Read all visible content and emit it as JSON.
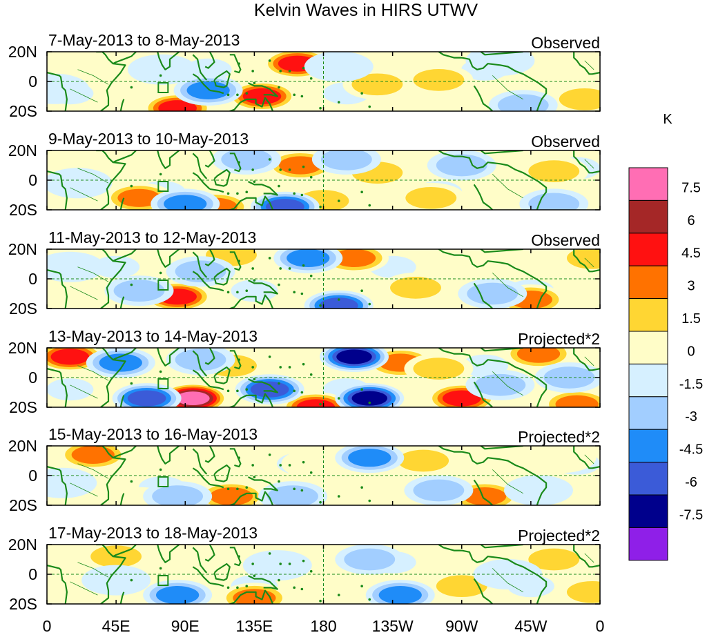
{
  "chart_data": {
    "type": "heatmap",
    "title": "Kelvin Waves in HIRS UTWV",
    "units": "K",
    "x_tick_labels": [
      "0",
      "45E",
      "90E",
      "135E",
      "180",
      "135W",
      "90W",
      "45W",
      "0"
    ],
    "x_ticks_deg": [
      0,
      45,
      90,
      135,
      180,
      225,
      270,
      315,
      360
    ],
    "y_tick_labels": [
      "20N",
      "0",
      "20S"
    ],
    "y_ticks_deg": [
      20,
      0,
      -20
    ],
    "xlim": [
      0,
      360
    ],
    "ylim": [
      -20,
      20
    ],
    "panels": [
      {
        "date_range": "7-May-2013 to 8-May-2013",
        "label": "Observed",
        "anomalies": [
          {
            "lon": 163,
            "lat": 12,
            "value": 5.5
          },
          {
            "lon": 140,
            "lat": -10,
            "value": 5.5
          },
          {
            "lon": 85,
            "lat": -18,
            "value": 6.5
          },
          {
            "lon": 255,
            "lat": 1,
            "value": 3.2
          },
          {
            "lon": 215,
            "lat": -2,
            "value": 2.5
          },
          {
            "lon": 28,
            "lat": 12,
            "value": 2.2
          },
          {
            "lon": 332,
            "lat": 12,
            "value": 2.0
          },
          {
            "lon": 350,
            "lat": -12,
            "value": 2.5
          },
          {
            "lon": 105,
            "lat": -6,
            "value": -3.8
          },
          {
            "lon": 75,
            "lat": 8,
            "value": -2.2
          },
          {
            "lon": 310,
            "lat": -16,
            "value": -3.2
          },
          {
            "lon": 190,
            "lat": 10,
            "value": -2.0
          },
          {
            "lon": 5,
            "lat": -5,
            "value": -1.8
          },
          {
            "lon": 295,
            "lat": 14,
            "value": -2.2
          }
        ]
      },
      {
        "date_range": "9-May-2013 to 10-May-2013",
        "label": "Observed",
        "anomalies": [
          {
            "lon": 165,
            "lat": 10,
            "value": 5.0
          },
          {
            "lon": 60,
            "lat": -12,
            "value": 5.0
          },
          {
            "lon": 110,
            "lat": -18,
            "value": 5.0
          },
          {
            "lon": 180,
            "lat": -14,
            "value": 3.5
          },
          {
            "lon": 215,
            "lat": 5,
            "value": 3.2
          },
          {
            "lon": 330,
            "lat": 6,
            "value": 2.8
          },
          {
            "lon": 250,
            "lat": -12,
            "value": 2.5
          },
          {
            "lon": 30,
            "lat": 14,
            "value": 2.0
          },
          {
            "lon": 155,
            "lat": -18,
            "value": -6.5
          },
          {
            "lon": 90,
            "lat": -16,
            "value": -3.8
          },
          {
            "lon": 130,
            "lat": 14,
            "value": -3.2
          },
          {
            "lon": 195,
            "lat": 14,
            "value": -3.0
          },
          {
            "lon": 270,
            "lat": 10,
            "value": -2.5
          },
          {
            "lon": 330,
            "lat": -16,
            "value": -2.8
          },
          {
            "lon": 20,
            "lat": -2,
            "value": -2.0
          }
        ]
      },
      {
        "date_range": "11-May-2013 to 12-May-2013",
        "label": "Observed",
        "anomalies": [
          {
            "lon": 85,
            "lat": -12,
            "value": 5.5
          },
          {
            "lon": 200,
            "lat": 14,
            "value": 4.5
          },
          {
            "lon": 315,
            "lat": -14,
            "value": 4.0
          },
          {
            "lon": 120,
            "lat": 16,
            "value": 3.0
          },
          {
            "lon": 355,
            "lat": 14,
            "value": 3.5
          },
          {
            "lon": 240,
            "lat": -6,
            "value": 2.5
          },
          {
            "lon": 35,
            "lat": -14,
            "value": 2.0
          },
          {
            "lon": 270,
            "lat": 14,
            "value": 2.2
          },
          {
            "lon": 170,
            "lat": 14,
            "value": -3.8
          },
          {
            "lon": 190,
            "lat": -18,
            "value": -6.0
          },
          {
            "lon": 100,
            "lat": 5,
            "value": -2.8
          },
          {
            "lon": 60,
            "lat": -8,
            "value": -2.5
          },
          {
            "lon": 290,
            "lat": -10,
            "value": -3.0
          },
          {
            "lon": 15,
            "lat": 8,
            "value": -2.2
          }
        ]
      },
      {
        "date_range": "13-May-2013 to 14-May-2013",
        "label": "Projected*2",
        "anomalies": [
          {
            "lon": 95,
            "lat": -14,
            "value": 8.5
          },
          {
            "lon": 15,
            "lat": 14,
            "value": 6.0
          },
          {
            "lon": 270,
            "lat": -14,
            "value": 6.0
          },
          {
            "lon": 230,
            "lat": 10,
            "value": 5.0
          },
          {
            "lon": 320,
            "lat": 16,
            "value": 4.5
          },
          {
            "lon": 175,
            "lat": -20,
            "value": 5.5
          },
          {
            "lon": 255,
            "lat": 6,
            "value": 3.0
          },
          {
            "lon": 345,
            "lat": -18,
            "value": 5.0
          },
          {
            "lon": 120,
            "lat": 8,
            "value": 2.5
          },
          {
            "lon": 200,
            "lat": 14,
            "value": -8.0
          },
          {
            "lon": 210,
            "lat": -14,
            "value": -7.5
          },
          {
            "lon": 65,
            "lat": -14,
            "value": -6.0
          },
          {
            "lon": 145,
            "lat": -8,
            "value": -5.5
          },
          {
            "lon": 48,
            "lat": 10,
            "value": -4.5
          },
          {
            "lon": 100,
            "lat": 12,
            "value": -3.0
          },
          {
            "lon": 295,
            "lat": -5,
            "value": -3.0
          },
          {
            "lon": 340,
            "lat": 0,
            "value": -2.5
          }
        ]
      },
      {
        "date_range": "15-May-2013 to 16-May-2013",
        "label": "Projected*2",
        "anomalies": [
          {
            "lon": 30,
            "lat": 14,
            "value": 4.5
          },
          {
            "lon": 120,
            "lat": -14,
            "value": 5.0
          },
          {
            "lon": 285,
            "lat": -14,
            "value": 4.5
          },
          {
            "lon": 245,
            "lat": 10,
            "value": 2.5
          },
          {
            "lon": 335,
            "lat": 12,
            "value": 2.2
          },
          {
            "lon": 60,
            "lat": -18,
            "value": 2.0
          },
          {
            "lon": 175,
            "lat": 8,
            "value": 2.0
          },
          {
            "lon": 210,
            "lat": 12,
            "value": -3.8
          },
          {
            "lon": 85,
            "lat": -14,
            "value": -3.0
          },
          {
            "lon": 160,
            "lat": -14,
            "value": -2.8
          },
          {
            "lon": 255,
            "lat": -10,
            "value": -2.8
          },
          {
            "lon": 10,
            "lat": -5,
            "value": -2.0
          },
          {
            "lon": 320,
            "lat": -10,
            "value": -2.2
          }
        ]
      },
      {
        "date_range": "17-May-2013 to 18-May-2013",
        "label": "Projected*2",
        "anomalies": [
          {
            "lon": 135,
            "lat": -16,
            "value": 4.5
          },
          {
            "lon": 45,
            "lat": 12,
            "value": 2.5
          },
          {
            "lon": 330,
            "lat": 10,
            "value": 2.5
          },
          {
            "lon": 270,
            "lat": -8,
            "value": 2.5
          },
          {
            "lon": 180,
            "lat": 12,
            "value": 2.0
          },
          {
            "lon": 355,
            "lat": -12,
            "value": 2.8
          },
          {
            "lon": 20,
            "lat": -12,
            "value": 2.0
          },
          {
            "lon": 230,
            "lat": -14,
            "value": -4.5
          },
          {
            "lon": 85,
            "lat": -14,
            "value": -3.8
          },
          {
            "lon": 210,
            "lat": 10,
            "value": -2.8
          },
          {
            "lon": 150,
            "lat": 6,
            "value": -2.2
          },
          {
            "lon": 300,
            "lat": 0,
            "value": -2.0
          },
          {
            "lon": 45,
            "lat": -4,
            "value": -1.8
          }
        ]
      }
    ],
    "colorbar": {
      "title": "K",
      "levels": [
        -7.5,
        -6,
        -4.5,
        -3,
        -1.5,
        0,
        1.5,
        3,
        4.5,
        6,
        7.5
      ],
      "level_labels": [
        "7.5",
        "6",
        "4.5",
        "3",
        "1.5",
        "0",
        "-1.5",
        "-3",
        "-4.5",
        "-6",
        "-7.5"
      ],
      "colors": [
        "#8f1fe8",
        "#00008c",
        "#3b5bd8",
        "#1f8cf8",
        "#a2ceff",
        "#d6f0ff",
        "#fffdc8",
        "#ffd633",
        "#ff7200",
        "#ff1111",
        "#a52727",
        "#ff6eb4"
      ]
    },
    "coastline_color": "#1a8a1a"
  }
}
